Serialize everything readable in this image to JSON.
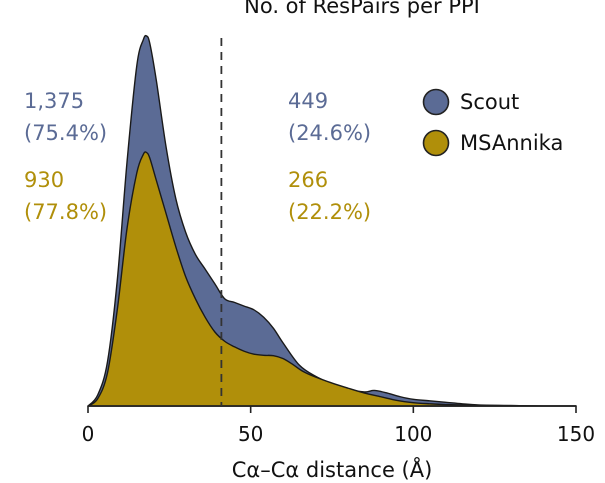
{
  "chart_data": {
    "type": "area",
    "title": "No. of ResPairs per PPI",
    "xlabel": "Cα–Cα distance (Å)",
    "ylabel": "",
    "xlim": [
      0,
      150
    ],
    "xticks": [
      0,
      50,
      100,
      150
    ],
    "threshold": 41,
    "legend_position": "top-right",
    "series": [
      {
        "name": "Scout",
        "color": "#5b6b95",
        "x": [
          0,
          3,
          6,
          9,
          12,
          15,
          17,
          18,
          19,
          21,
          24,
          27,
          30,
          33,
          36,
          39,
          42,
          45,
          48,
          51,
          54,
          57,
          60,
          65,
          70,
          75,
          80,
          85,
          88,
          92,
          96,
          100,
          105,
          110,
          115,
          120,
          130,
          140,
          150
        ],
        "y": [
          0,
          0.03,
          0.12,
          0.34,
          0.66,
          0.92,
          0.99,
          1.0,
          0.98,
          0.88,
          0.7,
          0.56,
          0.47,
          0.41,
          0.37,
          0.33,
          0.29,
          0.28,
          0.27,
          0.26,
          0.24,
          0.21,
          0.17,
          0.11,
          0.08,
          0.06,
          0.045,
          0.038,
          0.042,
          0.035,
          0.025,
          0.018,
          0.014,
          0.01,
          0.006,
          0.003,
          0.001,
          0,
          0
        ],
        "annotation_left": {
          "count": "1,375",
          "percent": "(75.4%)"
        },
        "annotation_right": {
          "count": "449",
          "percent": "(24.6%)"
        }
      },
      {
        "name": "MSAnnika",
        "color": "#b08f0a",
        "x": [
          0,
          3,
          6,
          9,
          12,
          15,
          17,
          18,
          19,
          21,
          24,
          27,
          30,
          33,
          36,
          39,
          42,
          45,
          48,
          51,
          54,
          57,
          60,
          63,
          66,
          70,
          75,
          80,
          85,
          90,
          95,
          100,
          105,
          110,
          120,
          130,
          140,
          150
        ],
        "y": [
          0,
          0.02,
          0.09,
          0.26,
          0.48,
          0.63,
          0.68,
          0.685,
          0.67,
          0.61,
          0.52,
          0.43,
          0.35,
          0.29,
          0.24,
          0.2,
          0.175,
          0.16,
          0.148,
          0.14,
          0.137,
          0.136,
          0.128,
          0.112,
          0.094,
          0.078,
          0.062,
          0.048,
          0.035,
          0.025,
          0.015,
          0.009,
          0.006,
          0.004,
          0.002,
          0.001,
          0,
          0
        ],
        "annotation_left": {
          "count": "930",
          "percent": "(77.8%)"
        },
        "annotation_right": {
          "count": "266",
          "percent": "(22.2%)"
        }
      }
    ]
  }
}
